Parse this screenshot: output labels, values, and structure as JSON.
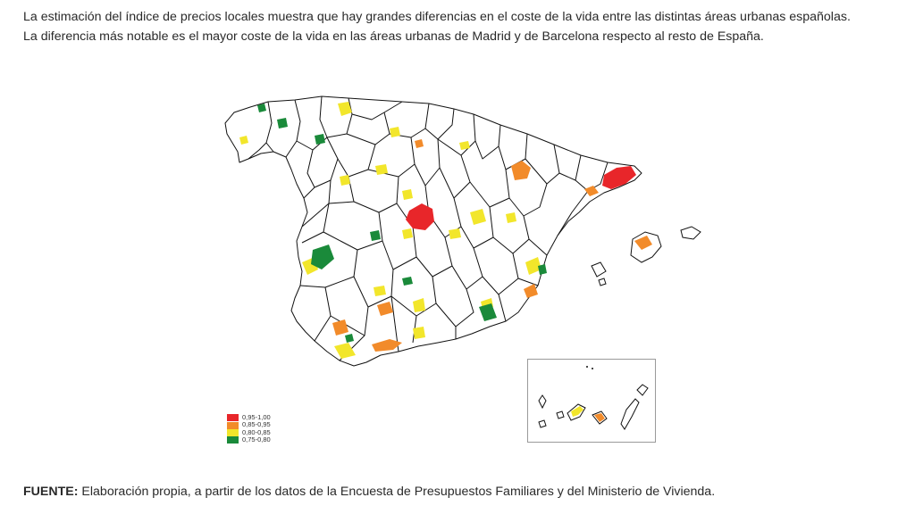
{
  "intro": {
    "line1": "La estimación del índice de precios locales muestra que hay grandes diferencias en el coste de la vida entre las distintas áreas urbanas españolas.",
    "line2": "La diferencia más notable es el mayor coste de la vida en las áreas urbanas de Madrid y de Barcelona respecto al resto de España."
  },
  "legend": {
    "items": [
      {
        "label": "0,95-1,00",
        "color": "#e8262a"
      },
      {
        "label": "0,85-0,95",
        "color": "#f28b2a"
      },
      {
        "label": "0,80-0,85",
        "color": "#f2e62b"
      },
      {
        "label": "0,75-0,80",
        "color": "#1a8a3a"
      }
    ]
  },
  "source": {
    "label": "FUENTE:",
    "text": " Elaboración propia, a partir de los datos de la Encuesta de Presupuestos Familiares y del Ministerio de Vivienda."
  },
  "colors": {
    "red": "#e8262a",
    "orange": "#f28b2a",
    "yellow": "#f2e62b",
    "green": "#1a8a3a",
    "outline": "#111111"
  }
}
